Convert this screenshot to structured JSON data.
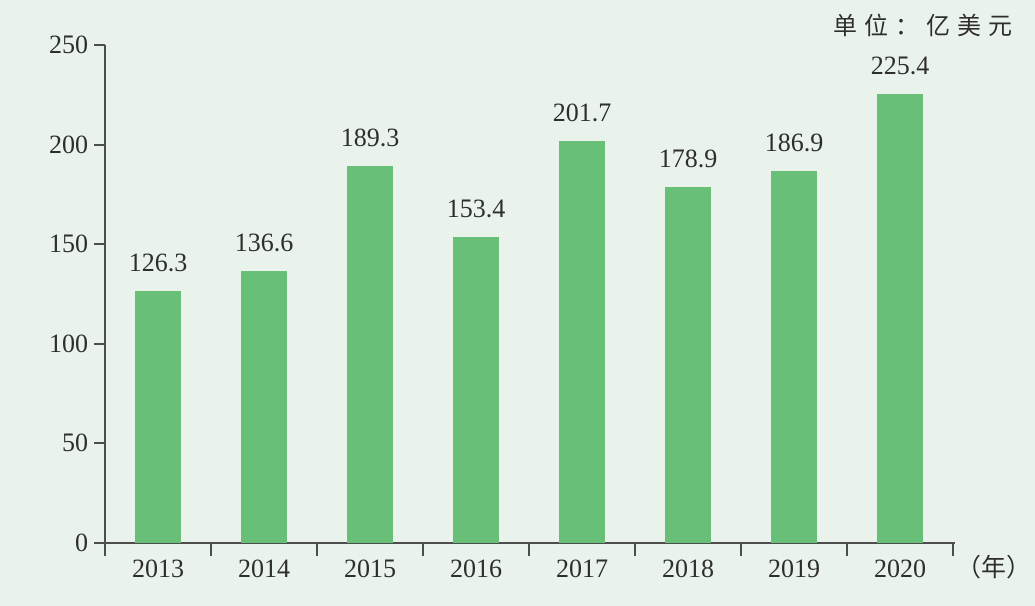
{
  "header": {
    "unit_label": "单位：亿美元"
  },
  "x_axis_suffix": "（年）",
  "chart_data": {
    "type": "bar",
    "title": "",
    "unit": "亿美元",
    "categories": [
      "2013",
      "2014",
      "2015",
      "2016",
      "2017",
      "2018",
      "2019",
      "2020"
    ],
    "values": [
      126.3,
      136.6,
      189.3,
      153.4,
      201.7,
      178.9,
      186.9,
      225.4
    ],
    "value_labels": [
      "126.3",
      "136.6",
      "189.3",
      "153.4",
      "201.7",
      "178.9",
      "186.9",
      "225.4"
    ],
    "xlabel": "（年）",
    "ylabel": "",
    "ylim": [
      0,
      250
    ],
    "yticks": [
      0,
      50,
      100,
      150,
      200,
      250
    ],
    "grid": false,
    "legend": false,
    "bar_color": "#68bf77",
    "background_color": "#eaf3eb",
    "text_color": "#2e2e2e",
    "axis_color": "#4d4d4d"
  }
}
